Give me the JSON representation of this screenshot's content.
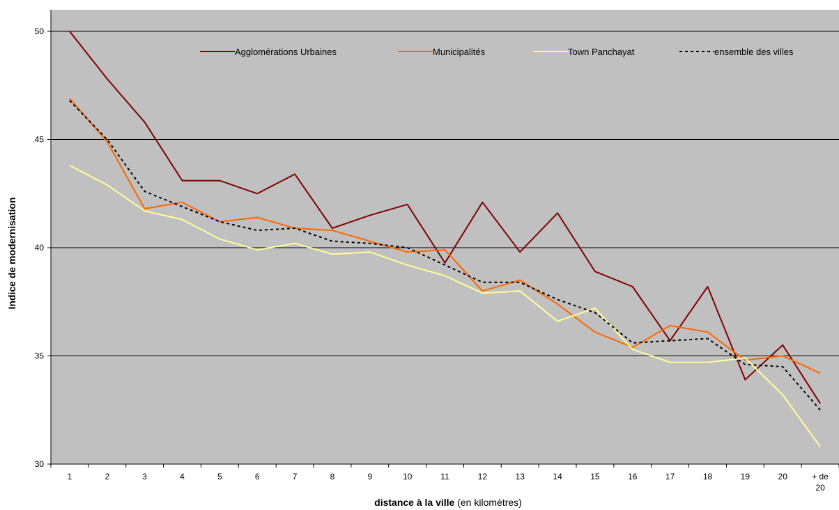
{
  "chart_data": {
    "type": "line",
    "xlabel_bold": "distance à la ville",
    "xlabel_rest": " (en kilomètres)",
    "ylabel": "Indice de modernisation",
    "ylim": [
      30,
      50
    ],
    "yticks": [
      "30",
      "35",
      "40",
      "45",
      "50"
    ],
    "grid": "horizontal",
    "legend_position": "top",
    "categories": [
      "1",
      "2",
      "3",
      "4",
      "5",
      "6",
      "7",
      "8",
      "9",
      "10",
      "11",
      "12",
      "13",
      "14",
      "15",
      "16",
      "17",
      "18",
      "19",
      "20",
      "+ de 20"
    ],
    "series": [
      {
        "name": "Agglomérations  Urbaines",
        "color": "#800000",
        "style": "solid",
        "values": [
          50.0,
          47.8,
          45.8,
          43.1,
          43.1,
          42.5,
          43.4,
          40.9,
          41.5,
          42.0,
          39.3,
          42.1,
          39.8,
          41.6,
          38.9,
          38.2,
          35.7,
          38.2,
          33.9,
          35.5,
          32.8
        ]
      },
      {
        "name": "Municipalités",
        "color": "#ff6600",
        "style": "solid",
        "values": [
          46.9,
          44.9,
          41.8,
          42.1,
          41.2,
          41.4,
          40.9,
          40.8,
          40.3,
          39.8,
          39.9,
          38.0,
          38.5,
          37.4,
          36.1,
          35.4,
          36.4,
          36.1,
          34.8,
          35.0,
          34.2
        ]
      },
      {
        "name": "Town Panchayat",
        "color": "#ffff99",
        "style": "solid",
        "values": [
          43.8,
          42.9,
          41.7,
          41.3,
          40.4,
          39.9,
          40.2,
          39.7,
          39.8,
          39.2,
          38.7,
          37.9,
          38.0,
          36.6,
          37.2,
          35.3,
          34.7,
          34.7,
          34.9,
          33.2,
          30.8
        ]
      },
      {
        "name": "ensemble des villes",
        "color": "#000000",
        "style": "dashed",
        "values": [
          46.8,
          45.0,
          42.6,
          41.9,
          41.2,
          40.8,
          40.9,
          40.3,
          40.2,
          40.0,
          39.2,
          38.4,
          38.4,
          37.6,
          37.0,
          35.6,
          35.7,
          35.8,
          34.6,
          34.5,
          32.5
        ]
      }
    ]
  }
}
